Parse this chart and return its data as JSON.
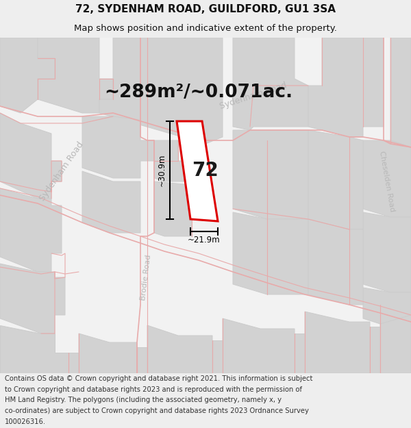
{
  "title_line1": "72, SYDENHAM ROAD, GUILDFORD, GU1 3SA",
  "title_line2": "Map shows position and indicative extent of the property.",
  "area_text": "~289m²/~0.071ac.",
  "label_72": "72",
  "dim_width": "~21.9m",
  "dim_height": "~30.9m",
  "footer_lines": [
    "Contains OS data © Crown copyright and database right 2021. This information is subject",
    "to Crown copyright and database rights 2023 and is reproduced with the permission of",
    "HM Land Registry. The polygons (including the associated geometry, namely x, y",
    "co-ordinates) are subject to Crown copyright and database rights 2023 Ordnance Survey",
    "100026316."
  ],
  "bg_color": "#eeeeee",
  "map_bg": "#f5f5f5",
  "road_color": "#e8aaaa",
  "block_color": "#d0d0d0",
  "block_edge": "#cccccc",
  "white": "#ffffff",
  "red_outline": "#dd0000",
  "road_label_color": "#b8b8b8",
  "title_fontsize": 11,
  "subtitle_fontsize": 9.5,
  "area_fontsize": 19,
  "label_fontsize": 20,
  "dim_fontsize": 8.5,
  "footer_fontsize": 7.2,
  "road_label_fontsize": 9
}
